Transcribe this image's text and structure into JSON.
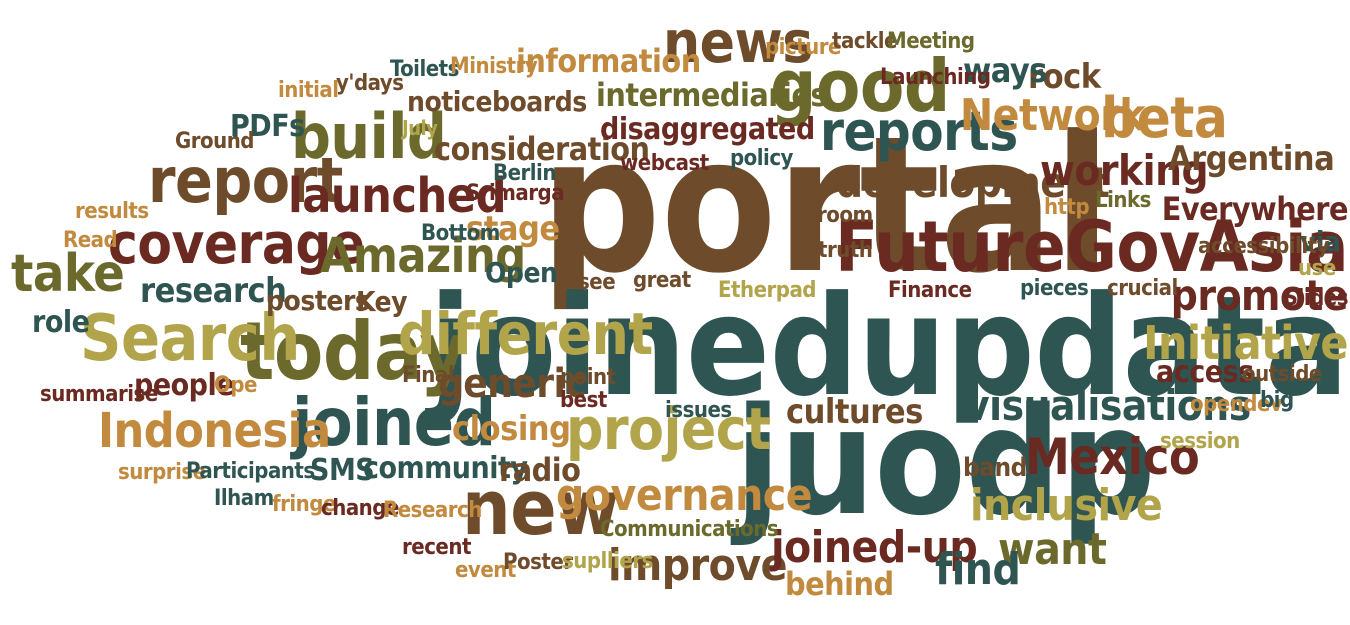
{
  "palette": {
    "dark_teal": "#2f5553",
    "olive": "#6b6a2c",
    "brown": "#6e4b2a",
    "maroon": "#6a2a22",
    "tan": "#c28a3e",
    "khaki": "#b2a44b",
    "dark_brown": "#5a3a1f"
  },
  "words": [
    {
      "id": "portal",
      "text": "portal",
      "color": "brown"
    },
    {
      "id": "joinedupdata",
      "text": "joinedupdata",
      "color": "dark_teal"
    },
    {
      "id": "juodp",
      "text": "juodp",
      "color": "dark_teal"
    },
    {
      "id": "futuregovasia",
      "text": "FutureGovAsia",
      "color": "maroon"
    },
    {
      "id": "today",
      "text": "today",
      "color": "olive"
    },
    {
      "id": "search",
      "text": "Search",
      "color": "khaki"
    },
    {
      "id": "different",
      "text": "different",
      "color": "khaki"
    },
    {
      "id": "good",
      "text": "good",
      "color": "olive"
    },
    {
      "id": "news",
      "text": "news",
      "color": "brown"
    },
    {
      "id": "reports",
      "text": "reports",
      "color": "dark_teal"
    },
    {
      "id": "report",
      "text": "report",
      "color": "brown"
    },
    {
      "id": "build",
      "text": "build",
      "color": "olive"
    },
    {
      "id": "coverage",
      "text": "coverage",
      "color": "maroon"
    },
    {
      "id": "launched",
      "text": "launched",
      "color": "maroon"
    },
    {
      "id": "amazing",
      "text": "Amazing",
      "color": "olive"
    },
    {
      "id": "project",
      "text": "project",
      "color": "khaki"
    },
    {
      "id": "new",
      "text": "new",
      "color": "brown"
    },
    {
      "id": "joined",
      "text": "joined",
      "color": "dark_teal"
    },
    {
      "id": "indonesia",
      "text": "Indonesia",
      "color": "tan"
    },
    {
      "id": "mexico",
      "text": "Mexico",
      "color": "maroon"
    },
    {
      "id": "beta",
      "text": "beta",
      "color": "tan"
    },
    {
      "id": "network",
      "text": "Network",
      "color": "tan"
    },
    {
      "id": "take",
      "text": "take",
      "color": "olive"
    },
    {
      "id": "development",
      "text": "development",
      "color": "brown"
    },
    {
      "id": "working",
      "text": "working",
      "color": "maroon"
    },
    {
      "id": "promote",
      "text": "promote",
      "color": "maroon"
    },
    {
      "id": "initiative",
      "text": "Initiative",
      "color": "khaki"
    },
    {
      "id": "visualisations",
      "text": "visualisations",
      "color": "dark_teal"
    },
    {
      "id": "governance",
      "text": "governance",
      "color": "tan"
    },
    {
      "id": "improve",
      "text": "improve",
      "color": "brown"
    },
    {
      "id": "joined_up",
      "text": "joined-up",
      "color": "maroon"
    },
    {
      "id": "inclusive",
      "text": "inclusive",
      "color": "khaki"
    },
    {
      "id": "want",
      "text": "want",
      "color": "olive"
    },
    {
      "id": "find",
      "text": "find",
      "color": "dark_teal"
    },
    {
      "id": "generic",
      "text": "generic",
      "color": "brown"
    },
    {
      "id": "information",
      "text": "information",
      "color": "tan"
    },
    {
      "id": "intermediaries",
      "text": "intermediaries",
      "color": "olive"
    },
    {
      "id": "noticeboards",
      "text": "noticeboards",
      "color": "brown"
    },
    {
      "id": "consideration",
      "text": "consideration",
      "color": "brown"
    },
    {
      "id": "disaggregated",
      "text": "disaggregated",
      "color": "maroon"
    },
    {
      "id": "argentina",
      "text": "Argentina",
      "color": "brown"
    },
    {
      "id": "everywhere",
      "text": "Everywhere",
      "color": "maroon"
    },
    {
      "id": "cultures",
      "text": "cultures",
      "color": "brown"
    },
    {
      "id": "community",
      "text": "community",
      "color": "dark_teal"
    },
    {
      "id": "radio",
      "text": "radio",
      "color": "brown"
    },
    {
      "id": "sms",
      "text": "SMS",
      "color": "dark_teal"
    },
    {
      "id": "closing",
      "text": "closing",
      "color": "tan"
    },
    {
      "id": "research",
      "text": "research",
      "color": "dark_teal"
    },
    {
      "id": "posters",
      "text": "posters",
      "color": "brown"
    },
    {
      "id": "key",
      "text": "Key",
      "color": "brown"
    },
    {
      "id": "open",
      "text": "Open",
      "color": "dark_teal"
    },
    {
      "id": "stage",
      "text": "stage",
      "color": "tan"
    },
    {
      "id": "people",
      "text": "people",
      "color": "maroon"
    },
    {
      "id": "role",
      "text": "role",
      "color": "dark_teal"
    },
    {
      "id": "access",
      "text": "access",
      "color": "maroon"
    },
    {
      "id": "rock",
      "text": "rock",
      "color": "brown"
    },
    {
      "id": "ways",
      "text": "ways",
      "color": "dark_teal"
    },
    {
      "id": "pdfs",
      "text": "PDFs",
      "color": "dark_teal"
    },
    {
      "id": "behind",
      "text": "behind",
      "color": "tan"
    },
    {
      "id": "band",
      "text": "band",
      "color": "brown"
    },
    {
      "id": "via",
      "text": "via",
      "color": "dark_teal"
    },
    {
      "id": "slides",
      "text": "Slides",
      "color": "maroon"
    },
    {
      "id": "picture",
      "text": "picture",
      "color": "tan"
    },
    {
      "id": "tackle",
      "text": "tackle",
      "color": "brown"
    },
    {
      "id": "meeting",
      "text": "Meeting",
      "color": "olive"
    },
    {
      "id": "launching",
      "text": "Launching",
      "color": "maroon"
    },
    {
      "id": "toilets",
      "text": "Toilets",
      "color": "dark_teal"
    },
    {
      "id": "ministry",
      "text": "Ministry",
      "color": "tan"
    },
    {
      "id": "ydays",
      "text": "y'days",
      "color": "brown"
    },
    {
      "id": "initial",
      "text": "initial",
      "color": "tan"
    },
    {
      "id": "ground",
      "text": "Ground",
      "color": "brown"
    },
    {
      "id": "july",
      "text": "July",
      "color": "khaki"
    },
    {
      "id": "policy",
      "text": "policy",
      "color": "dark_teal"
    },
    {
      "id": "webcast",
      "text": "webcast",
      "color": "maroon"
    },
    {
      "id": "berlin",
      "text": "Berlin",
      "color": "dark_teal"
    },
    {
      "id": "srimarga",
      "text": "Srimarga",
      "color": "maroon"
    },
    {
      "id": "bottom",
      "text": "Bottom",
      "color": "dark_teal"
    },
    {
      "id": "results",
      "text": "results",
      "color": "tan"
    },
    {
      "id": "read",
      "text": "Read",
      "color": "tan"
    },
    {
      "id": "room",
      "text": "room",
      "color": "brown"
    },
    {
      "id": "truth",
      "text": "truth",
      "color": "brown"
    },
    {
      "id": "http",
      "text": "http",
      "color": "tan"
    },
    {
      "id": "links",
      "text": "Links",
      "color": "olive"
    },
    {
      "id": "accessibility",
      "text": "accessibility",
      "color": "brown"
    },
    {
      "id": "use",
      "text": "use",
      "color": "khaki"
    },
    {
      "id": "see",
      "text": "see",
      "color": "brown"
    },
    {
      "id": "great",
      "text": "great",
      "color": "brown"
    },
    {
      "id": "etherpad",
      "text": "Etherpad",
      "color": "khaki"
    },
    {
      "id": "finance",
      "text": "Finance",
      "color": "maroon"
    },
    {
      "id": "pieces",
      "text": "pieces",
      "color": "dark_teal"
    },
    {
      "id": "crucial",
      "text": "crucial",
      "color": "brown"
    },
    {
      "id": "summarise",
      "text": "summarise",
      "color": "maroon"
    },
    {
      "id": "ope",
      "text": "Ope",
      "color": "tan"
    },
    {
      "id": "final",
      "text": "Final",
      "color": "brown"
    },
    {
      "id": "point",
      "text": "point",
      "color": "brown"
    },
    {
      "id": "best",
      "text": "best",
      "color": "maroon"
    },
    {
      "id": "issues",
      "text": "issues",
      "color": "dark_teal"
    },
    {
      "id": "outside",
      "text": "outside",
      "color": "brown"
    },
    {
      "id": "opendev",
      "text": "opendev",
      "color": "tan"
    },
    {
      "id": "big",
      "text": "big",
      "color": "dark_teal"
    },
    {
      "id": "session",
      "text": "session",
      "color": "khaki"
    },
    {
      "id": "surprise",
      "text": "surprise",
      "color": "tan"
    },
    {
      "id": "participants",
      "text": "Participants",
      "color": "dark_teal"
    },
    {
      "id": "ilham",
      "text": "Ilham",
      "color": "dark_teal"
    },
    {
      "id": "fringe",
      "text": "fringe",
      "color": "tan"
    },
    {
      "id": "change",
      "text": "change",
      "color": "maroon"
    },
    {
      "id": "research2",
      "text": "Research",
      "color": "tan"
    },
    {
      "id": "recent",
      "text": "recent",
      "color": "maroon"
    },
    {
      "id": "event",
      "text": "event",
      "color": "tan"
    },
    {
      "id": "poster",
      "text": "Poster",
      "color": "brown"
    },
    {
      "id": "suplliers",
      "text": "suplliers",
      "color": "khaki"
    },
    {
      "id": "communications",
      "text": "Communications",
      "color": "olive"
    }
  ]
}
